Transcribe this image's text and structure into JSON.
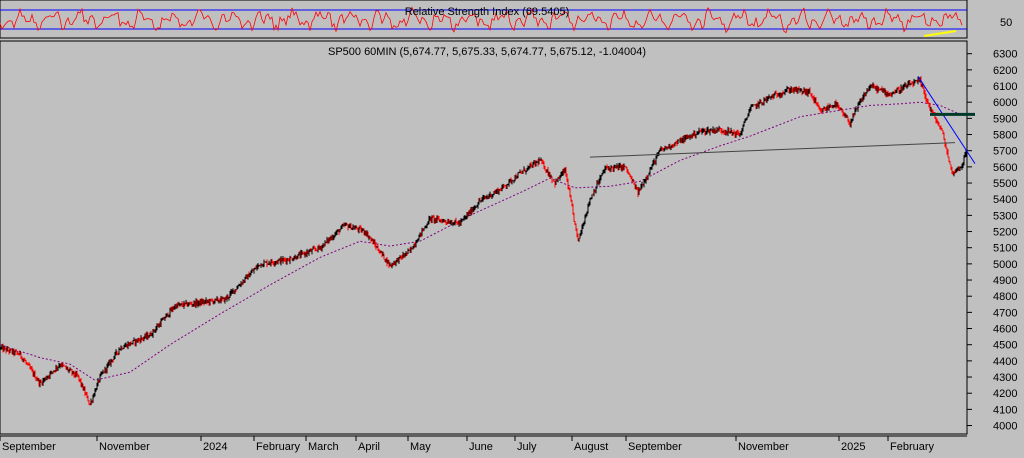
{
  "colors": {
    "background": "#c0c0c0",
    "rsi_line": "#ff0000",
    "rsi_bands": "#0000ff",
    "candle_up": "#000000",
    "candle_down": "#ff0000",
    "moving_average": "#800080",
    "trendline_down": "#0000ff",
    "trendline_flat": "#444444",
    "resistance": "#003a2a",
    "rsi_highlight": "#ffff00"
  },
  "chart_data": [
    {
      "type": "line",
      "title": "Relative Strength Index (69.5405)",
      "y_tick_labels": [
        "50"
      ],
      "series": [
        {
          "name": "Relative Strength Index",
          "last_value": 69.5405
        }
      ]
    },
    {
      "type": "candlestick",
      "title": "SP500 60MIN (5,674.77, 5,675.33, 5,674.77, 5,675.12, -1.04004)",
      "ohlc_last": {
        "open": 5674.77,
        "high": 5675.33,
        "low": 5674.77,
        "close": 5675.12,
        "change": -1.04004
      },
      "ylim": [
        3960,
        6360
      ],
      "y_ticks": [
        4000,
        4100,
        4200,
        4300,
        4400,
        4500,
        4600,
        4700,
        4800,
        4900,
        5000,
        5100,
        5200,
        5300,
        5400,
        5500,
        5600,
        5700,
        5800,
        5900,
        6000,
        6100,
        6200,
        6300
      ],
      "x_tick_labels": [
        "September",
        "November",
        "2024",
        "February",
        "March",
        "April",
        "May",
        "June",
        "July",
        "August",
        "September",
        "November",
        "2025",
        "February"
      ],
      "price_path": [
        [
          0,
          4480
        ],
        [
          20,
          4440
        ],
        [
          40,
          4260
        ],
        [
          60,
          4380
        ],
        [
          78,
          4300
        ],
        [
          90,
          4130
        ],
        [
          100,
          4300
        ],
        [
          120,
          4480
        ],
        [
          150,
          4560
        ],
        [
          175,
          4740
        ],
        [
          200,
          4760
        ],
        [
          225,
          4780
        ],
        [
          260,
          5000
        ],
        [
          290,
          5030
        ],
        [
          320,
          5100
        ],
        [
          345,
          5240
        ],
        [
          365,
          5200
        ],
        [
          390,
          4990
        ],
        [
          410,
          5080
        ],
        [
          430,
          5280
        ],
        [
          460,
          5250
        ],
        [
          480,
          5390
        ],
        [
          500,
          5460
        ],
        [
          520,
          5560
        ],
        [
          540,
          5640
        ],
        [
          555,
          5500
        ],
        [
          565,
          5580
        ],
        [
          578,
          5140
        ],
        [
          590,
          5400
        ],
        [
          605,
          5590
        ],
        [
          625,
          5600
        ],
        [
          638,
          5440
        ],
        [
          660,
          5700
        ],
        [
          680,
          5760
        ],
        [
          700,
          5820
        ],
        [
          720,
          5830
        ],
        [
          740,
          5800
        ],
        [
          750,
          5960
        ],
        [
          770,
          6030
        ],
        [
          790,
          6080
        ],
        [
          810,
          6060
        ],
        [
          820,
          5940
        ],
        [
          835,
          5990
        ],
        [
          850,
          5870
        ],
        [
          860,
          6000
        ],
        [
          870,
          6100
        ],
        [
          890,
          6050
        ],
        [
          910,
          6110
        ],
        [
          920,
          6130
        ],
        [
          930,
          5960
        ],
        [
          942,
          5820
        ],
        [
          952,
          5560
        ],
        [
          962,
          5610
        ],
        [
          966,
          5690
        ]
      ],
      "moving_average_path": [
        [
          0,
          4500
        ],
        [
          40,
          4420
        ],
        [
          70,
          4380
        ],
        [
          95,
          4280
        ],
        [
          130,
          4330
        ],
        [
          170,
          4500
        ],
        [
          220,
          4690
        ],
        [
          270,
          4870
        ],
        [
          320,
          5040
        ],
        [
          360,
          5140
        ],
        [
          390,
          5110
        ],
        [
          420,
          5140
        ],
        [
          470,
          5300
        ],
        [
          520,
          5440
        ],
        [
          550,
          5530
        ],
        [
          575,
          5470
        ],
        [
          610,
          5480
        ],
        [
          640,
          5510
        ],
        [
          680,
          5640
        ],
        [
          720,
          5730
        ],
        [
          750,
          5790
        ],
        [
          800,
          5910
        ],
        [
          830,
          5940
        ],
        [
          870,
          5980
        ],
        [
          900,
          5990
        ],
        [
          920,
          6000
        ],
        [
          940,
          5980
        ],
        [
          962,
          5920
        ]
      ],
      "trendlines": [
        {
          "kind": "descending",
          "from": [
            918,
            6160
          ],
          "to": [
            975,
            5620
          ]
        },
        {
          "kind": "support",
          "from": [
            590,
            5660
          ],
          "to": [
            955,
            5750
          ]
        },
        {
          "kind": "resistance",
          "from": [
            930,
            5925
          ],
          "to": [
            975,
            5925
          ]
        }
      ]
    }
  ]
}
